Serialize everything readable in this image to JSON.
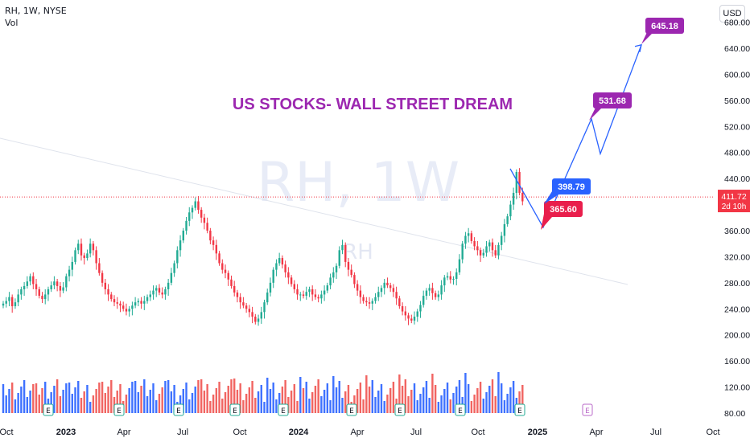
{
  "header": {
    "symbol_line": "RH, 1W, NYSE",
    "volume_label": "Vol",
    "currency_button": "USD"
  },
  "watermark": {
    "main": "RH, 1W",
    "sub": "RH"
  },
  "headline": "US STOCKS- WALL STREET DREAM",
  "price_tag": {
    "price": "411.72",
    "countdown": "2d 10h"
  },
  "colors": {
    "up": "#22ab94",
    "down": "#f23645",
    "vol_up": "#2962ff",
    "vol_down": "#ef5350",
    "projection": "#2962ff",
    "headline": "#9c27b0",
    "label_purple": "#9c27b0",
    "label_blue": "#2962ff",
    "label_red": "#e91e4c",
    "grid_text": "#131722"
  },
  "chart_data": {
    "type": "candlestick",
    "y_axis": {
      "ylim": [
        70,
        680
      ],
      "ticks": [
        "80.00",
        "120.00",
        "160.00",
        "200.00",
        "240.00",
        "280.00",
        "320.00",
        "360.00",
        "400.00",
        "440.00",
        "480.00",
        "520.00",
        "560.00",
        "600.00",
        "640.00",
        "680.00"
      ]
    },
    "x_axis": {
      "ticks": [
        "Oct",
        "2023",
        "Apr",
        "Jul",
        "Oct",
        "2024",
        "Apr",
        "Jul",
        "Oct",
        "2025",
        "Apr",
        "Jul",
        "Oct"
      ]
    },
    "close_series": [
      248,
      252,
      258,
      244,
      250,
      262,
      270,
      275,
      282,
      290,
      278,
      270,
      260,
      255,
      262,
      270,
      276,
      282,
      275,
      268,
      273,
      290,
      300,
      312,
      330,
      340,
      322,
      318,
      325,
      340,
      330,
      310,
      295,
      280,
      270,
      262,
      255,
      250,
      248,
      245,
      240,
      236,
      240,
      245,
      250,
      252,
      248,
      252,
      258,
      262,
      268,
      272,
      265,
      262,
      270,
      280,
      295,
      310,
      330,
      345,
      360,
      375,
      388,
      395,
      405,
      392,
      380,
      372,
      360,
      345,
      338,
      325,
      310,
      300,
      295,
      285,
      275,
      265,
      258,
      250,
      245,
      240,
      235,
      228,
      220,
      225,
      235,
      250,
      265,
      280,
      300,
      310,
      318,
      308,
      296,
      288,
      278,
      270,
      262,
      262,
      260,
      266,
      270,
      262,
      258,
      256,
      262,
      268,
      276,
      288,
      296,
      306,
      330,
      338,
      312,
      300,
      292,
      278,
      268,
      258,
      252,
      250,
      248,
      252,
      258,
      266,
      272,
      280,
      276,
      272,
      266,
      256,
      244,
      236,
      230,
      225,
      222,
      228,
      236,
      246,
      260,
      268,
      272,
      264,
      258,
      262,
      276,
      288,
      290,
      285,
      286,
      296,
      316,
      340,
      352,
      356,
      344,
      336,
      330,
      322,
      326,
      336,
      342,
      330,
      322,
      338,
      352,
      370,
      382,
      400,
      418,
      450,
      418,
      405
    ]
  },
  "markers": {
    "earnings_letter": "E",
    "earnings_count": 9
  },
  "projection": {
    "points": [
      [
        398,
        "2024-11"
      ],
      [
        375,
        "2024-12"
      ],
      [
        531.68,
        "2025-03"
      ],
      [
        475,
        "2025-03"
      ],
      [
        645.18,
        "2025-06"
      ]
    ]
  },
  "annotations": [
    {
      "text": "398.79",
      "style": "blue"
    },
    {
      "text": "365.60",
      "style": "red"
    },
    {
      "text": "531.68",
      "style": "purple"
    },
    {
      "text": "645.18",
      "style": "purple"
    }
  ]
}
